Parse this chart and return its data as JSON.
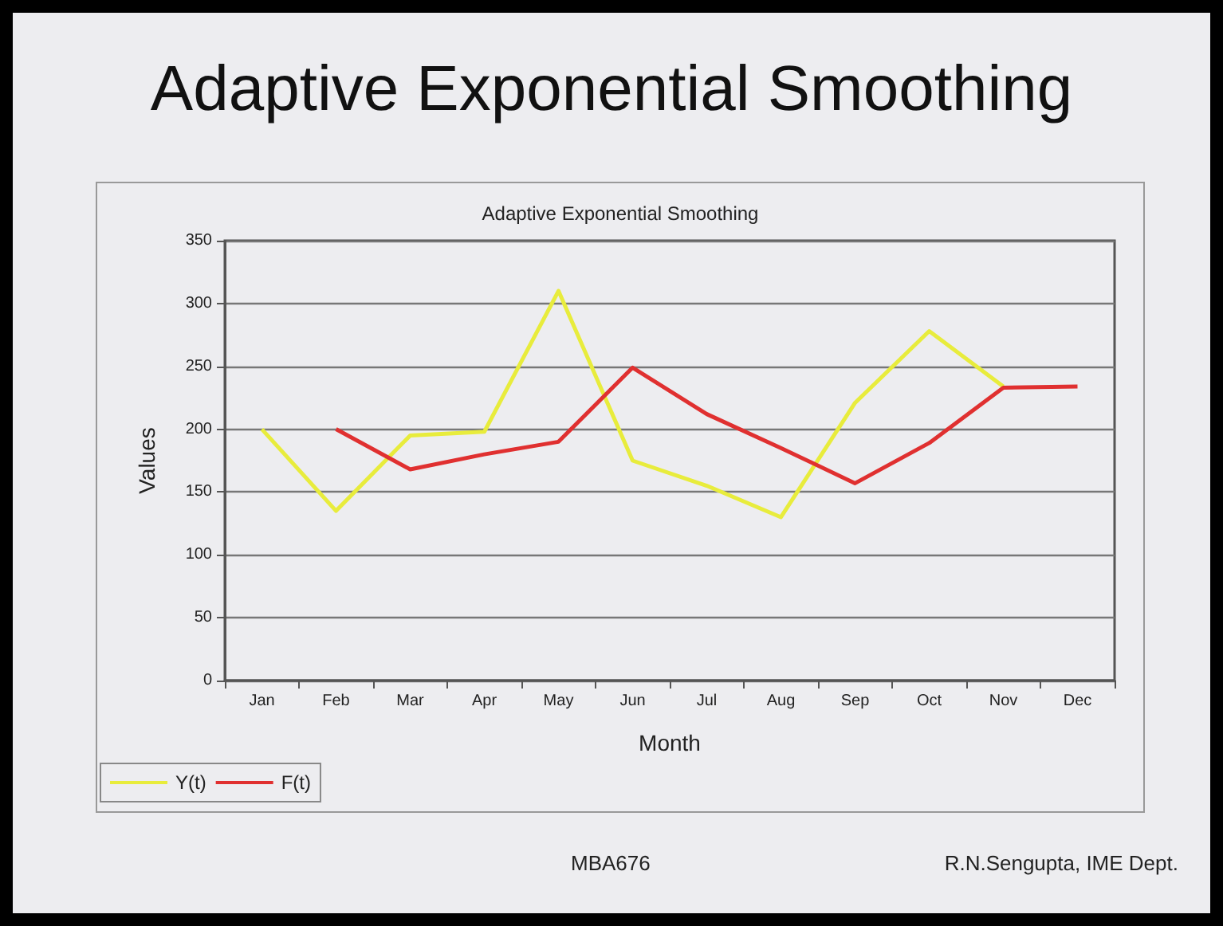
{
  "chart_data": {
    "type": "line",
    "title": "Adaptive Exponential Smoothing",
    "subtitle": "Adaptive Exponential Smoothing",
    "xlabel": "Month",
    "ylabel": "Values",
    "categories": [
      "Jan",
      "Feb",
      "Mar",
      "Apr",
      "May",
      "Jun",
      "Jul",
      "Aug",
      "Sep",
      "Oct",
      "Nov",
      "Dec"
    ],
    "series": [
      {
        "name": "Y(t)",
        "color": "#e8ec3c",
        "values": [
          200,
          135,
          195,
          198,
          310,
          175,
          155,
          130,
          221,
          278,
          234,
          null
        ]
      },
      {
        "name": "F(t)",
        "color": "#e03030",
        "values": [
          null,
          200,
          168,
          180,
          190,
          249,
          212,
          185,
          157,
          189,
          233,
          234
        ]
      }
    ],
    "ylim": [
      0,
      350
    ],
    "yticks": [
      0,
      50,
      100,
      150,
      200,
      250,
      300,
      350
    ],
    "grid": "y",
    "legend": "bottom left",
    "marker": "none",
    "line_style": "solid",
    "annotations": [
      "MBA676",
      "R.N.Sengupta, IME Dept."
    ]
  }
}
